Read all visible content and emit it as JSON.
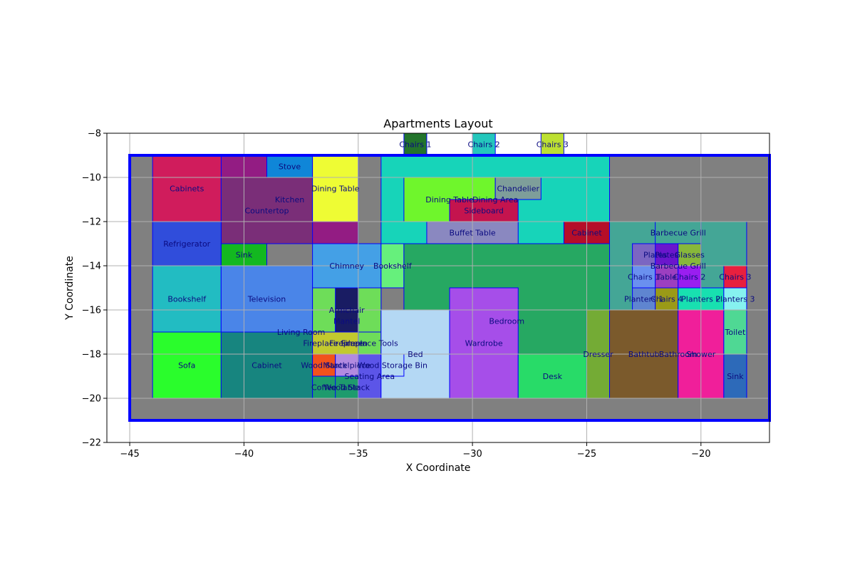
{
  "chart_data": {
    "type": "layout",
    "title": "Apartments Layout",
    "xlabel": "X Coordinate",
    "ylabel": "Y Coordinate",
    "xlim": [
      -46,
      -17
    ],
    "ylim": [
      -22,
      -8
    ],
    "xticks": [
      -45,
      -40,
      -35,
      -30,
      -25,
      -20
    ],
    "yticks": [
      -22,
      -20,
      -18,
      -16,
      -14,
      -12,
      -10,
      -8
    ],
    "grid": true,
    "colors": {
      "outline": "#0000ff",
      "background": "#808080",
      "label": "#0b0b80",
      "grid": "#b0b0b0"
    },
    "boundary": {
      "x1": -45,
      "y1": -21,
      "x2": -17,
      "y2": -9
    },
    "rooms": [
      {
        "label": "Kitchen",
        "x1": -41,
        "y1": -13,
        "x2": -35,
        "y2": -9,
        "color": "#931c83"
      },
      {
        "label": "Cabinets",
        "x1": -44,
        "y1": -12,
        "x2": -41,
        "y2": -9,
        "color": "#d01c5c"
      },
      {
        "label": "Countertop",
        "x1": -41,
        "y1": -13,
        "x2": -37,
        "y2": -10,
        "color": "#7a2e78"
      },
      {
        "label": "Stove",
        "x1": -39,
        "y1": -10,
        "x2": -37,
        "y2": -9,
        "color": "#0f86d8"
      },
      {
        "label": "Dining Table",
        "x1": -37,
        "y1": -12,
        "x2": -35,
        "y2": -9,
        "color": "#eefc34"
      },
      {
        "label": "Refrigerator",
        "x1": -44,
        "y1": -14,
        "x2": -41,
        "y2": -12,
        "color": "#304ddb"
      },
      {
        "label": "Sink",
        "x1": -41,
        "y1": -14,
        "x2": -39,
        "y2": -13,
        "color": "#13b820"
      },
      {
        "label": "Dining Area",
        "x1": -34,
        "y1": -13,
        "x2": -24,
        "y2": -9,
        "color": "#17d4b9"
      },
      {
        "label": "Dining Table",
        "x1": -33,
        "y1": -12,
        "x2": -29,
        "y2": -10,
        "color": "#6ff62c"
      },
      {
        "label": "Chandelier",
        "x1": -29,
        "y1": -11,
        "x2": -27,
        "y2": -10,
        "color": "#7e9e9a"
      },
      {
        "label": "Sideboard",
        "x1": -31,
        "y1": -12,
        "x2": -28,
        "y2": -11,
        "color": "#c4144e"
      },
      {
        "label": "Buffet Table",
        "x1": -32,
        "y1": -13,
        "x2": -28,
        "y2": -12,
        "color": "#8a88c0"
      },
      {
        "label": "Cabinet",
        "x1": -26,
        "y1": -13,
        "x2": -24,
        "y2": -12,
        "color": "#b50e29"
      },
      {
        "label": "Chairs 1",
        "x1": -33,
        "y1": -9,
        "x2": -32,
        "y2": -8,
        "color": "#23742c"
      },
      {
        "label": "Chairs 2",
        "x1": -30,
        "y1": -9,
        "x2": -29,
        "y2": -8,
        "color": "#24c7bc"
      },
      {
        "label": "Chairs 3",
        "x1": -27,
        "y1": -9,
        "x2": -26,
        "y2": -8,
        "color": "#bde032"
      },
      {
        "label": "Living Room",
        "x1": -41,
        "y1": -20,
        "x2": -34,
        "y2": -14,
        "color": "#4a85e8"
      },
      {
        "label": "Bookshelf",
        "x1": -44,
        "y1": -17,
        "x2": -41,
        "y2": -14,
        "color": "#22bcc2"
      },
      {
        "label": "Television",
        "x1": -41,
        "y1": -17,
        "x2": -37,
        "y2": -14,
        "color": "#4a85e8"
      },
      {
        "label": "Sofa",
        "x1": -44,
        "y1": -20,
        "x2": -41,
        "y2": -17,
        "color": "#2afd2c"
      },
      {
        "label": "Cabinet",
        "x1": -41,
        "y1": -20,
        "x2": -37,
        "y2": -17,
        "color": "#17857f"
      },
      {
        "label": "Chimney",
        "x1": -37,
        "y1": -15,
        "x2": -34,
        "y2": -13,
        "color": "#44a0e6"
      },
      {
        "label": "Bookshelf",
        "x1": -34,
        "y1": -15,
        "x2": -33,
        "y2": -13,
        "color": "#66f07c"
      },
      {
        "label": "Fireplace",
        "x1": -37,
        "y1": -20,
        "x2": -34,
        "y2": -15,
        "color": "#6edd59"
      },
      {
        "label": "Armchair",
        "x1": -36,
        "y1": -17,
        "x2": -35,
        "y2": -15,
        "color": "#191c63"
      },
      {
        "label": "Mantel",
        "x1": -36,
        "y1": -17,
        "x2": -35,
        "y2": -16,
        "color": "#191c63"
      },
      {
        "label": "Fireplace Screen",
        "x1": -37,
        "y1": -18,
        "x2": -35,
        "y2": -17,
        "color": "#c2c92e"
      },
      {
        "label": "Fireplace Tools",
        "x1": -35,
        "y1": -18,
        "x2": -34,
        "y2": -17,
        "color": "#6edd59"
      },
      {
        "label": "Wood Stack",
        "x1": -37,
        "y1": -19,
        "x2": -36,
        "y2": -18,
        "color": "#f2521c"
      },
      {
        "label": "Mantelpiece",
        "x1": -36,
        "y1": -19,
        "x2": -35,
        "y2": -18,
        "color": "#b28ae0"
      },
      {
        "label": "Coffee Table",
        "x1": -37,
        "y1": -20,
        "x2": -35,
        "y2": -19,
        "color": "#1e9b6d"
      },
      {
        "label": "Wood Stack",
        "x1": -36,
        "y1": -20,
        "x2": -35,
        "y2": -19,
        "color": "#1e9b6d"
      },
      {
        "label": "Seating Area",
        "x1": -35,
        "y1": -20,
        "x2": -34,
        "y2": -18,
        "color": "#5c55e8"
      },
      {
        "label": "Bedroom",
        "x1": -33,
        "y1": -20,
        "x2": -24,
        "y2": -13,
        "color": "#26a862"
      },
      {
        "label": "Bed",
        "x1": -34,
        "y1": -20,
        "x2": -31,
        "y2": -16,
        "color": "#b4d8f4"
      },
      {
        "label": "Wood Storage Bin",
        "x1": -34,
        "y1": -19,
        "x2": -33,
        "y2": -18,
        "color": "#b4d8f4"
      },
      {
        "label": "Wardrobe",
        "x1": -31,
        "y1": -20,
        "x2": -28,
        "y2": -15,
        "color": "#a64ee9"
      },
      {
        "label": "Desk",
        "x1": -28,
        "y1": -20,
        "x2": -25,
        "y2": -18,
        "color": "#28db68"
      },
      {
        "label": "Dresser",
        "x1": -25,
        "y1": -20,
        "x2": -24,
        "y2": -16,
        "color": "#74ab35"
      },
      {
        "label": "Barbecue Grill",
        "x1": -24,
        "y1": -16,
        "x2": -18,
        "y2": -12,
        "color": "#44a696"
      },
      {
        "label": "Barbecue Grill",
        "x1": -22,
        "y1": -13,
        "x2": -20,
        "y2": -12,
        "color": "#44a696"
      },
      {
        "label": "Plates",
        "x1": -23,
        "y1": -14,
        "x2": -21,
        "y2": -13,
        "color": "#7b66c2"
      },
      {
        "label": "Plates",
        "x1": -22,
        "y1": -14,
        "x2": -21,
        "y2": -13,
        "color": "#6b16cc"
      },
      {
        "label": "Glasses",
        "x1": -21,
        "y1": -14,
        "x2": -20,
        "y2": -13,
        "color": "#88b83a"
      },
      {
        "label": "Chairs 1",
        "x1": -23,
        "y1": -15,
        "x2": -22,
        "y2": -14,
        "color": "#6a90ef"
      },
      {
        "label": "Table",
        "x1": -22,
        "y1": -15,
        "x2": -21,
        "y2": -14,
        "color": "#9c3fc0"
      },
      {
        "label": "Chairs 2",
        "x1": -21,
        "y1": -15,
        "x2": -20,
        "y2": -14,
        "color": "#9a1ef0"
      },
      {
        "label": "Chairs 3",
        "x1": -19,
        "y1": -15,
        "x2": -18,
        "y2": -14,
        "color": "#e8203e"
      },
      {
        "label": "Planters 1",
        "x1": -23,
        "y1": -16,
        "x2": -22,
        "y2": -15,
        "color": "#5f85d0"
      },
      {
        "label": "Chairs 4",
        "x1": -22,
        "y1": -16,
        "x2": -21,
        "y2": -15,
        "color": "#9a9a17"
      },
      {
        "label": "Planters 2",
        "x1": -21,
        "y1": -16,
        "x2": -19,
        "y2": -15,
        "color": "#18e0b0"
      },
      {
        "label": "Planters 3",
        "x1": -19,
        "y1": -16,
        "x2": -18,
        "y2": -15,
        "color": "#86f2f0"
      },
      {
        "label": "Bathroom",
        "x1": -24,
        "y1": -20,
        "x2": -18,
        "y2": -16,
        "color": "#7b5a2c"
      },
      {
        "label": "Bathtub",
        "x1": -24,
        "y1": -20,
        "x2": -21,
        "y2": -16,
        "color": "#7b5a2c"
      },
      {
        "label": "Shower",
        "x1": -21,
        "y1": -20,
        "x2": -19,
        "y2": -16,
        "color": "#f01f9a"
      },
      {
        "label": "Toilet",
        "x1": -19,
        "y1": -18,
        "x2": -18,
        "y2": -16,
        "color": "#4fd894"
      },
      {
        "label": "Sink",
        "x1": -19,
        "y1": -20,
        "x2": -18,
        "y2": -18,
        "color": "#2d6ab9"
      }
    ]
  }
}
